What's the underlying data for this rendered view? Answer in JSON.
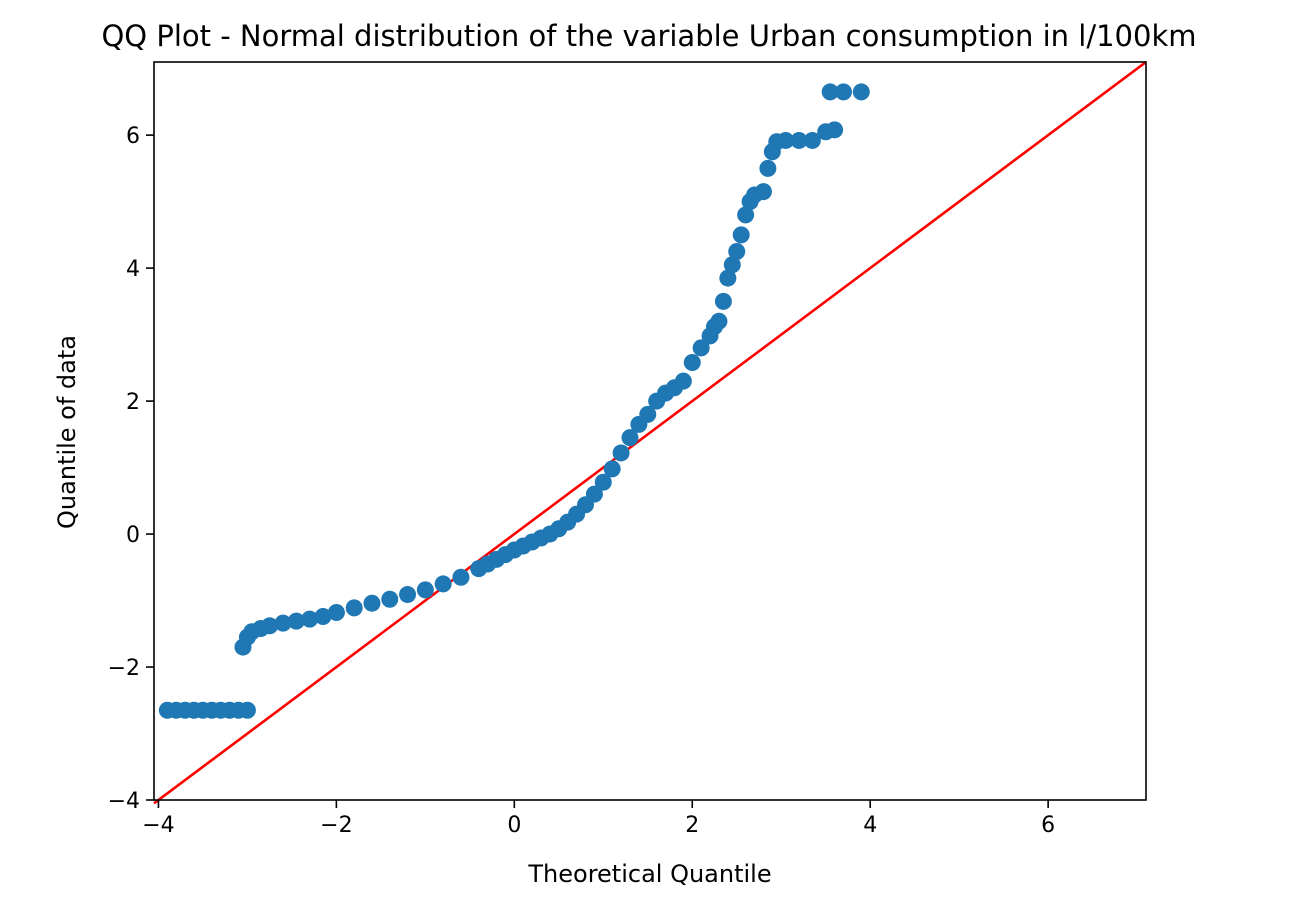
{
  "chart_data": {
    "type": "scatter",
    "title": "QQ Plot - Normal distribution of the variable Urban consumption in l/100km",
    "xlabel": "Theoretical Quantile",
    "ylabel": "Quantile of data",
    "xlim": [
      -4.05,
      7.1
    ],
    "ylim": [
      -4.0,
      7.1
    ],
    "x_ticks": [
      -4,
      -2,
      0,
      2,
      4,
      6
    ],
    "y_ticks": [
      -4,
      -2,
      0,
      2,
      4,
      6
    ],
    "x_tick_labels": [
      "−4",
      "−2",
      "0",
      "2",
      "4",
      "6"
    ],
    "y_tick_labels": [
      "−4",
      "−2",
      "0",
      "2",
      "4",
      "6"
    ],
    "grid": false,
    "reference_line": {
      "name": "",
      "color": "#ff0000",
      "points": [
        [
          -4.05,
          -4.05
        ],
        [
          7.1,
          7.1
        ]
      ]
    },
    "series": [
      {
        "name": "",
        "color": "#1f77b4",
        "points": [
          [
            -3.9,
            -2.65
          ],
          [
            -3.8,
            -2.65
          ],
          [
            -3.7,
            -2.65
          ],
          [
            -3.6,
            -2.65
          ],
          [
            -3.5,
            -2.65
          ],
          [
            -3.4,
            -2.65
          ],
          [
            -3.3,
            -2.65
          ],
          [
            -3.2,
            -2.65
          ],
          [
            -3.1,
            -2.65
          ],
          [
            -3.0,
            -2.65
          ],
          [
            -3.05,
            -1.7
          ],
          [
            -3.0,
            -1.55
          ],
          [
            -2.95,
            -1.47
          ],
          [
            -2.85,
            -1.42
          ],
          [
            -2.75,
            -1.38
          ],
          [
            -2.6,
            -1.34
          ],
          [
            -2.45,
            -1.31
          ],
          [
            -2.3,
            -1.28
          ],
          [
            -2.15,
            -1.24
          ],
          [
            -2.0,
            -1.18
          ],
          [
            -1.8,
            -1.11
          ],
          [
            -1.6,
            -1.04
          ],
          [
            -1.4,
            -0.98
          ],
          [
            -1.2,
            -0.91
          ],
          [
            -1.0,
            -0.84
          ],
          [
            -0.8,
            -0.75
          ],
          [
            -0.6,
            -0.65
          ],
          [
            -0.4,
            -0.52
          ],
          [
            -0.3,
            -0.45
          ],
          [
            -0.2,
            -0.38
          ],
          [
            -0.1,
            -0.31
          ],
          [
            0.0,
            -0.24
          ],
          [
            0.1,
            -0.18
          ],
          [
            0.2,
            -0.12
          ],
          [
            0.3,
            -0.06
          ],
          [
            0.4,
            0.0
          ],
          [
            0.5,
            0.08
          ],
          [
            0.6,
            0.18
          ],
          [
            0.7,
            0.3
          ],
          [
            0.8,
            0.44
          ],
          [
            0.9,
            0.6
          ],
          [
            1.0,
            0.78
          ],
          [
            1.1,
            0.98
          ],
          [
            1.2,
            1.22
          ],
          [
            1.3,
            1.45
          ],
          [
            1.4,
            1.65
          ],
          [
            1.5,
            1.8
          ],
          [
            1.6,
            2.0
          ],
          [
            1.7,
            2.12
          ],
          [
            1.8,
            2.2
          ],
          [
            1.9,
            2.3
          ],
          [
            2.0,
            2.58
          ],
          [
            2.1,
            2.8
          ],
          [
            2.2,
            2.98
          ],
          [
            2.25,
            3.12
          ],
          [
            2.3,
            3.2
          ],
          [
            2.35,
            3.5
          ],
          [
            2.4,
            3.85
          ],
          [
            2.45,
            4.05
          ],
          [
            2.5,
            4.25
          ],
          [
            2.55,
            4.5
          ],
          [
            2.6,
            4.8
          ],
          [
            2.65,
            5.0
          ],
          [
            2.7,
            5.1
          ],
          [
            2.8,
            5.15
          ],
          [
            2.85,
            5.5
          ],
          [
            2.9,
            5.75
          ],
          [
            2.95,
            5.9
          ],
          [
            3.05,
            5.92
          ],
          [
            3.2,
            5.92
          ],
          [
            3.35,
            5.92
          ],
          [
            3.5,
            6.05
          ],
          [
            3.6,
            6.08
          ],
          [
            3.55,
            6.65
          ],
          [
            3.7,
            6.65
          ],
          [
            3.9,
            6.65
          ]
        ]
      }
    ]
  }
}
